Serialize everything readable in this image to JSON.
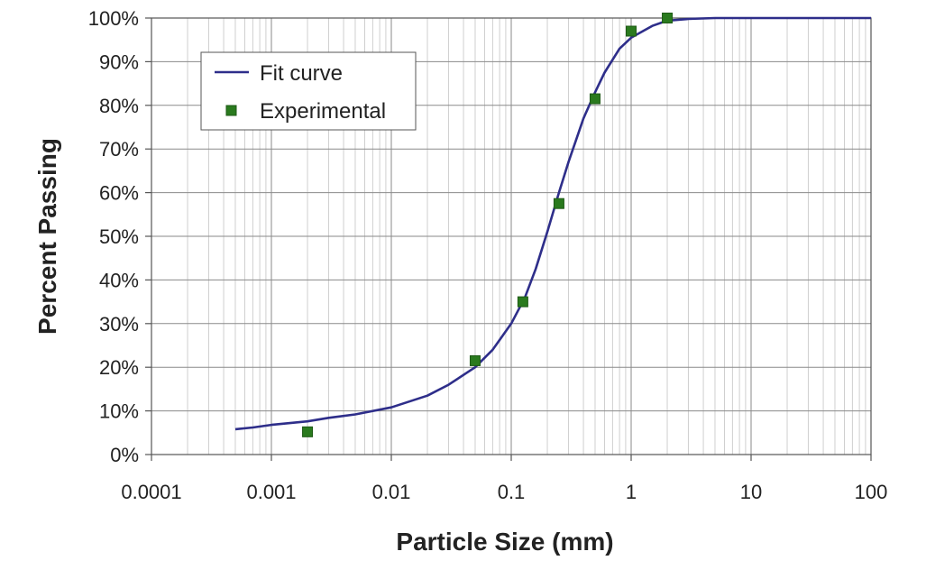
{
  "chart_data": {
    "type": "line",
    "title": "",
    "xlabel": "Particle Size (mm)",
    "ylabel": "Percent Passing",
    "xscale": "log",
    "xlim": [
      0.0001,
      100
    ],
    "ylim": [
      0,
      100
    ],
    "x_tick_labels": [
      "0.0001",
      "0.001",
      "0.01",
      "0.1",
      "1",
      "10",
      "100"
    ],
    "y_tick_labels": [
      "0%",
      "10%",
      "20%",
      "30%",
      "40%",
      "50%",
      "60%",
      "70%",
      "80%",
      "90%",
      "100%"
    ],
    "grid": true,
    "legend_position": "top-left",
    "series": [
      {
        "name": "Fit curve",
        "kind": "line",
        "color": "#2e2e8a",
        "x": [
          0.0005,
          0.0007,
          0.001,
          0.002,
          0.003,
          0.005,
          0.01,
          0.02,
          0.03,
          0.05,
          0.07,
          0.1,
          0.13,
          0.16,
          0.2,
          0.25,
          0.3,
          0.4,
          0.5,
          0.6,
          0.8,
          1,
          1.5,
          2,
          3,
          5,
          10,
          100
        ],
        "y": [
          5.8,
          6.2,
          6.8,
          7.6,
          8.4,
          9.2,
          10.8,
          13.5,
          16.0,
          20.0,
          24.0,
          30.0,
          36.0,
          42.5,
          51.0,
          60.0,
          67.0,
          77.0,
          83.0,
          87.5,
          93.0,
          95.5,
          98.2,
          99.4,
          99.8,
          100,
          100,
          100
        ]
      },
      {
        "name": "Experimental",
        "kind": "scatter",
        "color": "#2a7a1e",
        "x": [
          0.002,
          0.05,
          0.125,
          0.25,
          0.5,
          1,
          2
        ],
        "y": [
          5.2,
          21.5,
          35.0,
          57.5,
          81.5,
          97.0,
          100
        ]
      }
    ]
  }
}
